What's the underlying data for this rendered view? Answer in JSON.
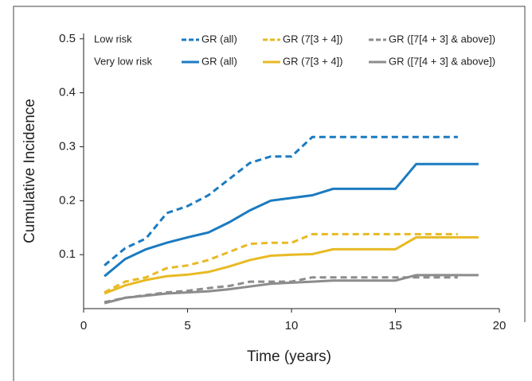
{
  "chart_data": {
    "type": "line",
    "x_label": "Time (years)",
    "y_label": "Cumulative Incidence",
    "xlim": [
      0,
      20
    ],
    "xticks": [
      0,
      5,
      10,
      15,
      20
    ],
    "ylim": [
      0,
      0.51
    ],
    "yticks": [
      0.1,
      0.2,
      0.3,
      0.4,
      0.5
    ],
    "legend_groups": [
      "Low risk",
      "Very low risk"
    ],
    "series": [
      {
        "name": "GR (all)",
        "color": "#1b7bc0",
        "dashed": true,
        "group": 0,
        "x": [
          1,
          2,
          3,
          4,
          5,
          6,
          7,
          8,
          9,
          10,
          11,
          18
        ],
        "values": [
          0.08,
          0.112,
          0.13,
          0.177,
          0.19,
          0.21,
          0.24,
          0.27,
          0.282,
          0.282,
          0.318,
          0.318
        ]
      },
      {
        "name": "GR (7[3 + 4])",
        "color": "#e8ba24",
        "dashed": true,
        "group": 0,
        "x": [
          1,
          2,
          3,
          4,
          5,
          6,
          7,
          8,
          9,
          10,
          11,
          18
        ],
        "values": [
          0.03,
          0.05,
          0.058,
          0.075,
          0.08,
          0.09,
          0.105,
          0.12,
          0.122,
          0.122,
          0.138,
          0.138
        ]
      },
      {
        "name": "GR ([7[4 + 3] & above])",
        "color": "#8c8c8c",
        "dashed": true,
        "group": 0,
        "x": [
          1,
          2,
          3,
          4,
          5,
          6,
          7,
          8,
          9,
          10,
          11,
          18
        ],
        "values": [
          0.012,
          0.02,
          0.025,
          0.03,
          0.033,
          0.038,
          0.042,
          0.05,
          0.05,
          0.05,
          0.058,
          0.058
        ]
      },
      {
        "name": "GR (all)",
        "color": "#1b7bc0",
        "dashed": false,
        "group": 1,
        "x": [
          1,
          2,
          3,
          4,
          5,
          6,
          7,
          8,
          9,
          10,
          11,
          12,
          15,
          16,
          19
        ],
        "values": [
          0.06,
          0.092,
          0.11,
          0.122,
          0.132,
          0.141,
          0.16,
          0.182,
          0.2,
          0.205,
          0.21,
          0.222,
          0.222,
          0.268,
          0.268
        ]
      },
      {
        "name": "GR (7[3 + 4])",
        "color": "#e8ba24",
        "dashed": false,
        "group": 1,
        "x": [
          1,
          2,
          3,
          4,
          5,
          6,
          7,
          8,
          9,
          10,
          11,
          12,
          15,
          16,
          19
        ],
        "values": [
          0.028,
          0.043,
          0.053,
          0.06,
          0.063,
          0.068,
          0.078,
          0.09,
          0.098,
          0.1,
          0.101,
          0.11,
          0.11,
          0.132,
          0.132
        ]
      },
      {
        "name": "GR ([7[4 + 3] & above])",
        "color": "#8c8c8c",
        "dashed": false,
        "group": 1,
        "x": [
          1,
          2,
          3,
          4,
          5,
          6,
          7,
          8,
          9,
          10,
          11,
          12,
          15,
          16,
          19
        ],
        "values": [
          0.01,
          0.02,
          0.024,
          0.028,
          0.03,
          0.032,
          0.036,
          0.041,
          0.046,
          0.048,
          0.05,
          0.052,
          0.052,
          0.062,
          0.062
        ]
      }
    ]
  }
}
